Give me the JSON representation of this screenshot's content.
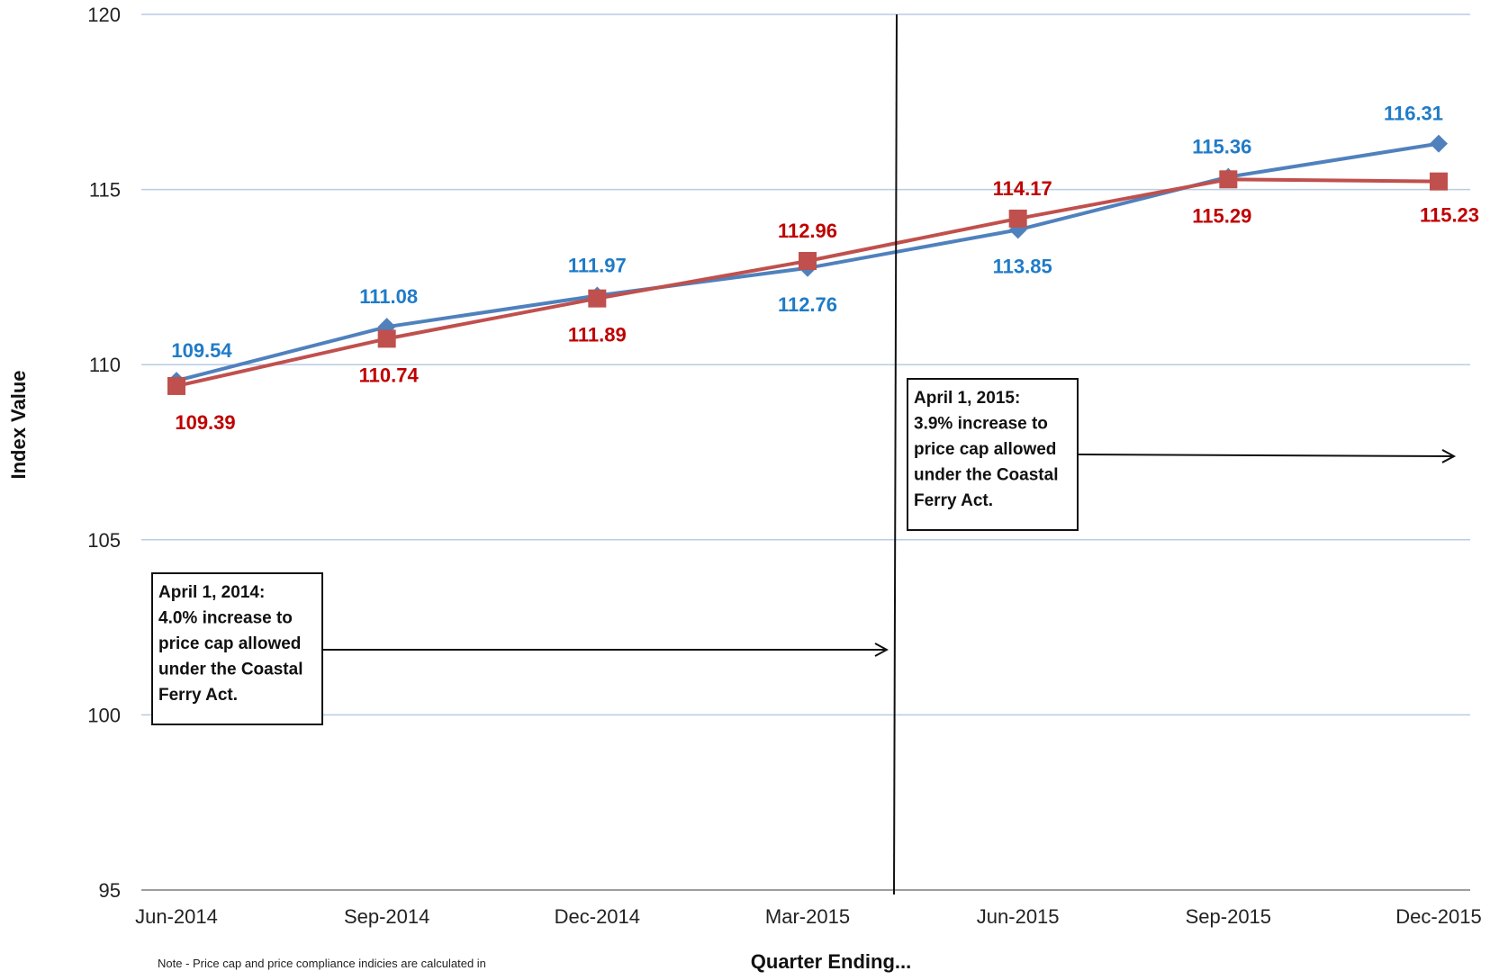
{
  "chart_data": {
    "type": "line",
    "title": "",
    "xlabel": "Quarter Ending...",
    "ylabel": "Index Value",
    "categories": [
      "Jun-2014",
      "Sep-2014",
      "Dec-2014",
      "Mar-2015",
      "Jun-2015",
      "Sep-2015",
      "Dec-2015"
    ],
    "ylim": [
      95,
      120
    ],
    "yticks": [
      95,
      100,
      105,
      110,
      115,
      120
    ],
    "grid": true,
    "legend": "none",
    "series": [
      {
        "marker": "diamond",
        "color": "#4f81bd",
        "label_color": "#1f7bc8",
        "values": [
          109.54,
          111.08,
          111.97,
          112.76,
          113.85,
          115.36,
          116.31
        ],
        "labels": [
          "109.54",
          "111.08",
          "111.97",
          "112.76",
          "113.85",
          "115.36",
          "116.31"
        ]
      },
      {
        "marker": "square",
        "color": "#c0504d",
        "label_color": "#c00000",
        "values": [
          109.39,
          110.74,
          111.89,
          112.96,
          114.17,
          115.29,
          115.23
        ],
        "labels": [
          "109.39",
          "110.74",
          "111.89",
          "112.96",
          "114.17",
          "115.29",
          "115.23"
        ]
      }
    ],
    "annotations": [
      {
        "lines": [
          "April 1, 2014:",
          "4.0% increase to",
          "price cap allowed",
          "under the Coastal",
          "Ferry Act."
        ]
      },
      {
        "lines": [
          "April 1, 2015:",
          "3.9% increase to",
          "price cap allowed",
          "under the Coastal",
          "Ferry Act."
        ]
      }
    ],
    "note": "Note - Price cap and price compliance indicies are calculated in"
  }
}
